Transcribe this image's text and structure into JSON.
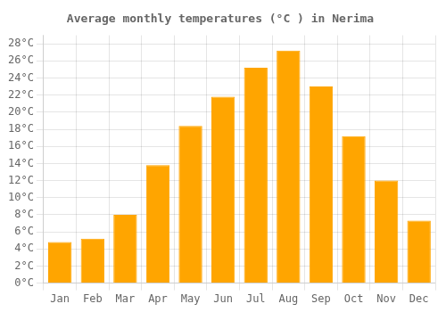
{
  "chart_data": {
    "type": "bar",
    "title": "Average monthly temperatures (°C ) in Nerima",
    "categories": [
      "Jan",
      "Feb",
      "Mar",
      "Apr",
      "May",
      "Jun",
      "Jul",
      "Aug",
      "Sep",
      "Oct",
      "Nov",
      "Dec"
    ],
    "values": [
      4.8,
      5.2,
      8.0,
      13.8,
      18.4,
      21.8,
      25.2,
      27.2,
      23.0,
      17.2,
      12.0,
      7.3
    ],
    "color": "#FFA500",
    "ylim": [
      0,
      29
    ],
    "yticks": [
      {
        "value": 0,
        "label": "0°C"
      },
      {
        "value": 2,
        "label": "2°C"
      },
      {
        "value": 4,
        "label": "4°C"
      },
      {
        "value": 6,
        "label": "6°C"
      },
      {
        "value": 8,
        "label": "8°C"
      },
      {
        "value": 10,
        "label": "10°C"
      },
      {
        "value": 12,
        "label": "12°C"
      },
      {
        "value": 14,
        "label": "14°C"
      },
      {
        "value": 16,
        "label": "16°C"
      },
      {
        "value": 18,
        "label": "18°C"
      },
      {
        "value": 20,
        "label": "20°C"
      },
      {
        "value": 22,
        "label": "22°C"
      },
      {
        "value": 24,
        "label": "24°C"
      },
      {
        "value": 26,
        "label": "26°C"
      },
      {
        "value": 28,
        "label": "28°C"
      }
    ],
    "grid": true
  }
}
